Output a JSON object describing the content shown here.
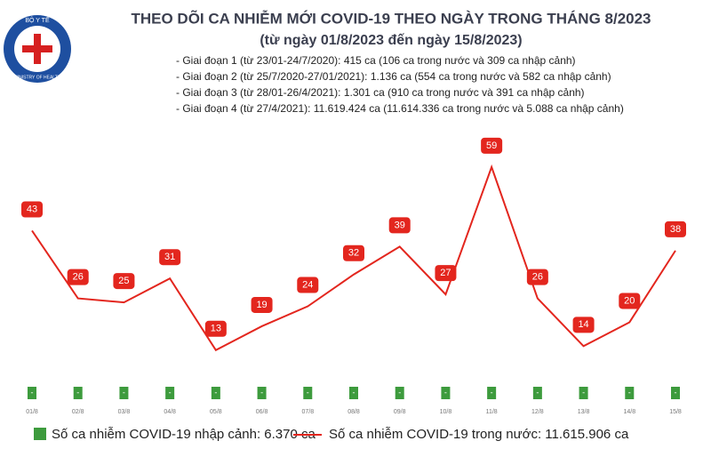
{
  "chart_data": {
    "type": "line",
    "logo": {
      "top": "BỘ Y TẾ",
      "bottom": "MINISTRY OF HEALTH"
    },
    "title": "THEO DÕI CA NHIỄM MỚI COVID-19 THEO NGÀY TRONG THÁNG 8/2023",
    "subtitle": "(từ ngày 01/8/2023 đến ngày 15/8/2023)",
    "notes": [
      "- Giai đoạn 1 (từ 23/01-24/7/2020): 415 ca (106 ca trong nước và 309 ca nhập cảnh)",
      "- Giai đoạn 2 (từ 25/7/2020-27/01/2021): 1.136 ca (554 ca trong nước và 582 ca nhập cảnh)",
      "- Giai đoạn 3 (từ 28/01-26/4/2021): 1.301 ca (910 ca trong nước và 391 ca nhập cảnh)",
      "- Giai đoạn 4 (từ 27/4/2021): 11.619.424 ca (11.614.336 ca trong nước và 5.088 ca nhập cảnh)"
    ],
    "categories": [
      "01/8",
      "02/8",
      "03/8",
      "04/8",
      "05/8",
      "06/8",
      "07/8",
      "08/8",
      "09/8",
      "10/8",
      "11/8",
      "12/8",
      "13/8",
      "14/8",
      "15/8"
    ],
    "ylim": [
      0,
      65
    ],
    "series": [
      {
        "name": "Số ca nhiễm COVID-19 nhập cảnh: 6.370 ca",
        "type": "bar",
        "color": "#3d9b3d",
        "values": [
          0,
          0,
          0,
          0,
          0,
          0,
          0,
          0,
          0,
          0,
          0,
          0,
          0,
          0,
          0
        ],
        "value_labels": [
          "-",
          "-",
          "-",
          "-",
          "-",
          "-",
          "-",
          "-",
          "-",
          "-",
          "-",
          "-",
          "-",
          "-",
          "-"
        ]
      },
      {
        "name": "Số ca nhiễm COVID-19 trong nước: 11.615.906 ca",
        "type": "line",
        "color": "#e3261e",
        "values": [
          43,
          26,
          25,
          31,
          13,
          19,
          24,
          32,
          39,
          27,
          59,
          26,
          14,
          20,
          38
        ]
      }
    ]
  }
}
